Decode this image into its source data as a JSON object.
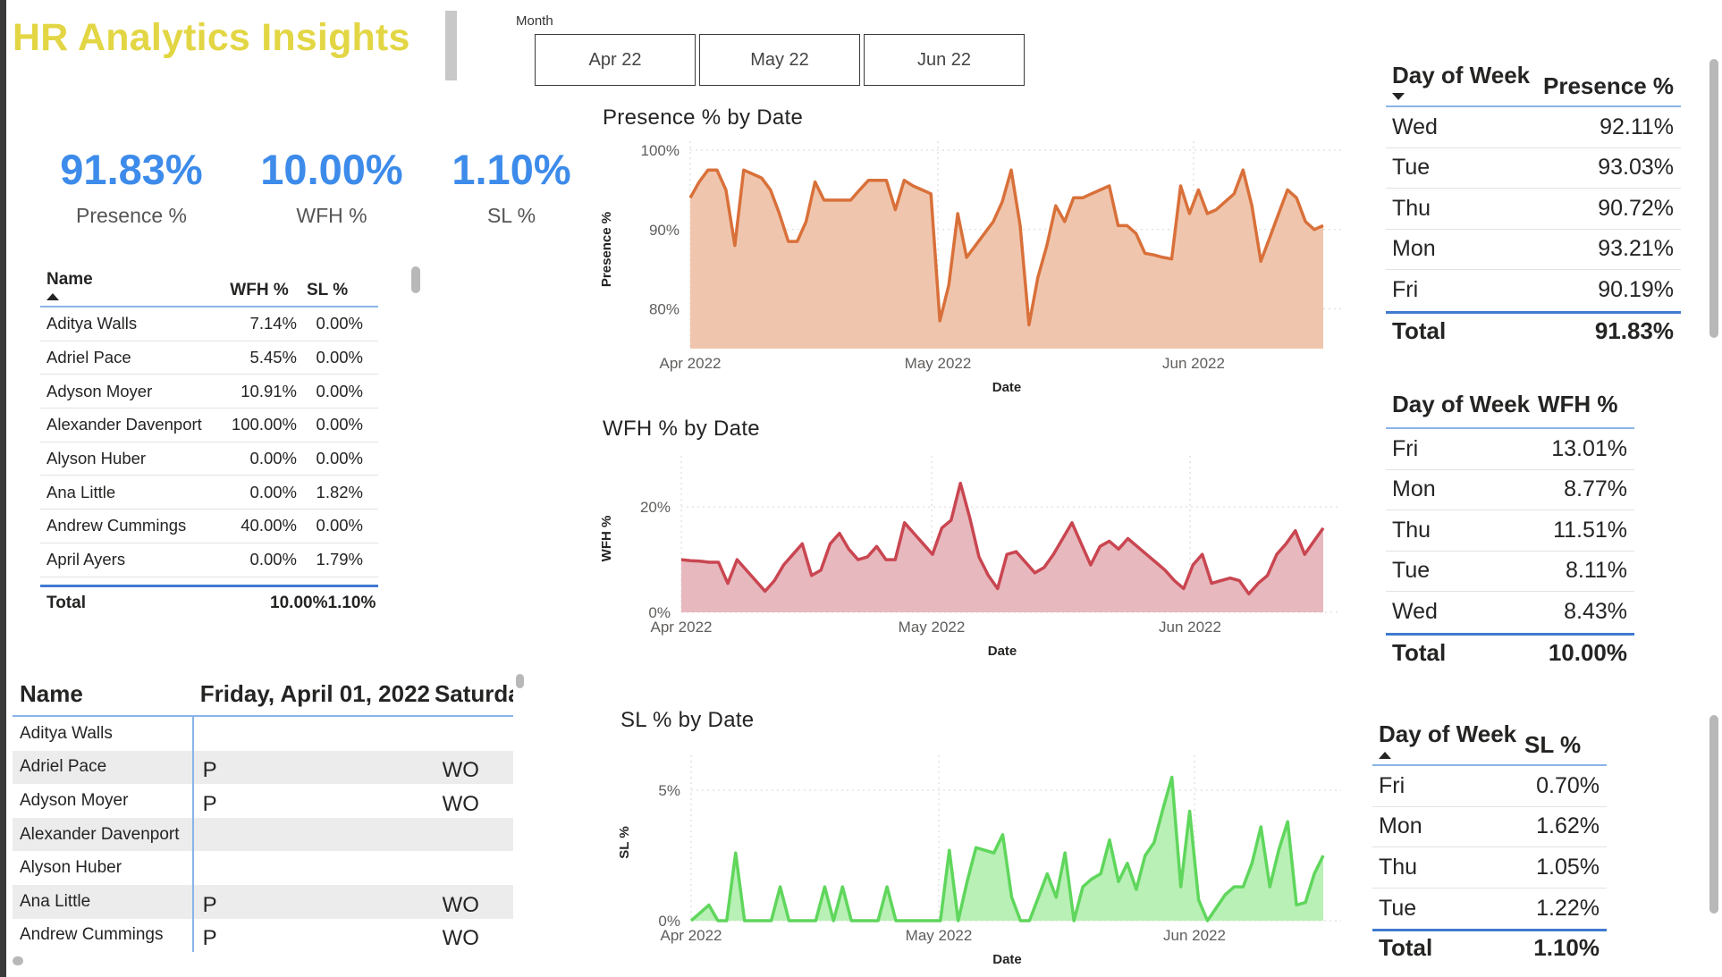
{
  "header": {
    "title": "HR Analytics Insights"
  },
  "slicer": {
    "label": "Month",
    "options": [
      "Apr 22",
      "May 22",
      "Jun 22"
    ]
  },
  "kpis": [
    {
      "value": "91.83%",
      "label": "Presence %"
    },
    {
      "value": "10.00%",
      "label": "WFH %"
    },
    {
      "value": "1.10%",
      "label": "SL %"
    }
  ],
  "employee_table": {
    "columns": [
      "Name",
      "WFH %",
      "SL %"
    ],
    "rows": [
      {
        "name": "Aditya Walls",
        "wfh": "7.14%",
        "sl": "0.00%"
      },
      {
        "name": "Adriel Pace",
        "wfh": "5.45%",
        "sl": "0.00%"
      },
      {
        "name": "Adyson Moyer",
        "wfh": "10.91%",
        "sl": "0.00%"
      },
      {
        "name": "Alexander Davenport",
        "wfh": "100.00%",
        "sl": "0.00%"
      },
      {
        "name": "Alyson Huber",
        "wfh": "0.00%",
        "sl": "0.00%"
      },
      {
        "name": "Ana Little",
        "wfh": "0.00%",
        "sl": "1.82%"
      },
      {
        "name": "Andrew Cummings",
        "wfh": "40.00%",
        "sl": "0.00%"
      },
      {
        "name": "April Ayers",
        "wfh": "0.00%",
        "sl": "1.79%"
      }
    ],
    "total": {
      "label": "Total",
      "wfh": "10.00%",
      "sl": "1.10%"
    }
  },
  "attendance_matrix": {
    "header": {
      "name": "Name",
      "col1": "Friday, April 01, 2022",
      "col2": "Saturday"
    },
    "rows": [
      {
        "name": "Aditya Walls",
        "v1": "",
        "v2": ""
      },
      {
        "name": "Adriel Pace",
        "v1": "P",
        "v2": "WO"
      },
      {
        "name": "Adyson Moyer",
        "v1": "P",
        "v2": "WO"
      },
      {
        "name": "Alexander Davenport",
        "v1": "",
        "v2": ""
      },
      {
        "name": "Alyson Huber",
        "v1": "",
        "v2": ""
      },
      {
        "name": "Ana Little",
        "v1": "P",
        "v2": "WO"
      },
      {
        "name": "Andrew Cummings",
        "v1": "P",
        "v2": "WO"
      }
    ]
  },
  "presence_by_day": {
    "columns": [
      "Day of Week",
      "Presence %"
    ],
    "rows": [
      {
        "day": "Wed",
        "value": "92.11%"
      },
      {
        "day": "Tue",
        "value": "93.03%"
      },
      {
        "day": "Thu",
        "value": "90.72%"
      },
      {
        "day": "Mon",
        "value": "93.21%"
      },
      {
        "day": "Fri",
        "value": "90.19%"
      }
    ],
    "total": {
      "label": "Total",
      "value": "91.83%"
    }
  },
  "wfh_by_day": {
    "columns": [
      "Day of Week",
      "WFH %"
    ],
    "rows": [
      {
        "day": "Fri",
        "value": "13.01%"
      },
      {
        "day": "Mon",
        "value": "8.77%"
      },
      {
        "day": "Thu",
        "value": "11.51%"
      },
      {
        "day": "Tue",
        "value": "8.11%"
      },
      {
        "day": "Wed",
        "value": "8.43%"
      }
    ],
    "total": {
      "label": "Total",
      "value": "10.00%"
    }
  },
  "sl_by_day": {
    "columns": [
      "Day of Week",
      "SL %"
    ],
    "rows": [
      {
        "day": "Fri",
        "value": "0.70%"
      },
      {
        "day": "Mon",
        "value": "1.62%"
      },
      {
        "day": "Thu",
        "value": "1.05%"
      },
      {
        "day": "Tue",
        "value": "1.22%"
      }
    ],
    "total": {
      "label": "Total",
      "value": "1.10%"
    }
  },
  "chart_data": [
    {
      "id": "presence",
      "type": "area",
      "title": "Presence % by Date",
      "xlabel": "Date",
      "ylabel": "Presence %",
      "x_ticks": [
        "Apr 2022",
        "May 2022",
        "Jun 2022"
      ],
      "y_ticks": [
        "80%",
        "90%",
        "100%"
      ],
      "ylim": [
        75,
        100
      ],
      "color": "#d9703a",
      "fill": "#efc6ad",
      "series": [
        {
          "values": [
            94,
            96,
            97.5,
            97.5,
            95,
            88,
            97.5,
            97,
            96.5,
            95,
            92,
            88.5,
            88.5,
            91,
            96,
            93.7,
            93.7,
            93.7,
            93.7,
            95,
            96.2,
            96.2,
            96.2,
            92.5,
            96.2,
            95.5,
            95,
            94.5,
            78.5,
            83,
            92,
            86.5,
            88,
            89.5,
            91,
            93.5,
            97.5,
            90.5,
            78,
            84,
            88,
            93,
            91,
            94,
            94,
            94.5,
            95,
            95.5,
            90.5,
            90.5,
            89.5,
            87,
            86.8,
            86.5,
            86.3,
            95.5,
            92,
            95,
            92,
            92.5,
            93.5,
            94.5,
            97.5,
            93,
            86,
            89,
            92,
            95,
            94,
            91,
            90,
            90.5
          ]
        }
      ]
    },
    {
      "id": "wfh",
      "type": "area",
      "title": "WFH % by Date",
      "xlabel": "Date",
      "ylabel": "WFH %",
      "x_ticks": [
        "Apr 2022",
        "May 2022",
        "Jun 2022"
      ],
      "y_ticks": [
        "0%",
        "20%"
      ],
      "ylim": [
        0,
        28
      ],
      "color": "#c94651",
      "fill": "#e7b8bd",
      "series": [
        {
          "values": [
            10,
            9.8,
            9.7,
            9.5,
            9.5,
            5.5,
            10,
            8,
            6,
            4,
            6,
            9,
            11,
            13,
            7,
            8,
            13,
            15,
            12,
            10,
            10.5,
            12.5,
            10,
            10,
            17,
            15,
            13,
            11,
            16,
            17.5,
            24.5,
            18,
            10.5,
            7,
            4.5,
            11,
            11.5,
            9.5,
            7.5,
            8.5,
            11,
            14,
            17,
            13,
            9,
            12.5,
            13.5,
            12,
            14,
            12.5,
            11,
            9.5,
            8,
            6,
            4.5,
            9,
            11,
            5.5,
            6,
            6.5,
            6,
            3.5,
            5.5,
            7,
            11,
            13,
            15.5,
            11,
            13.5,
            16
          ]
        }
      ]
    },
    {
      "id": "sl",
      "type": "area",
      "title": "SL % by Date",
      "xlabel": "Date",
      "ylabel": "SL %",
      "x_ticks": [
        "Apr 2022",
        "May 2022",
        "Jun 2022"
      ],
      "y_ticks": [
        "0%",
        "5%"
      ],
      "ylim": [
        0,
        6
      ],
      "color": "#5fd65c",
      "fill": "#b8f0b5",
      "series": [
        {
          "values": [
            0,
            0.3,
            0.6,
            0,
            0,
            2.6,
            0,
            0,
            0,
            0,
            1.3,
            0,
            0,
            0,
            0,
            1.3,
            0,
            1.3,
            0,
            0,
            0,
            0,
            1.3,
            0,
            0,
            0,
            0,
            0,
            0,
            2.7,
            0,
            1.5,
            2.8,
            2.7,
            2.6,
            3.3,
            0.9,
            0,
            0,
            0.9,
            1.8,
            0.9,
            2.6,
            0,
            1.3,
            1.6,
            1.8,
            3.1,
            1.5,
            2.2,
            1.2,
            2.5,
            3,
            4.3,
            5.5,
            1.3,
            4.2,
            0.8,
            0,
            0.5,
            1,
            1.3,
            1.3,
            2.2,
            3.6,
            1.3,
            2.7,
            3.8,
            0.6,
            0.7,
            1.8,
            2.5
          ]
        }
      ]
    }
  ]
}
